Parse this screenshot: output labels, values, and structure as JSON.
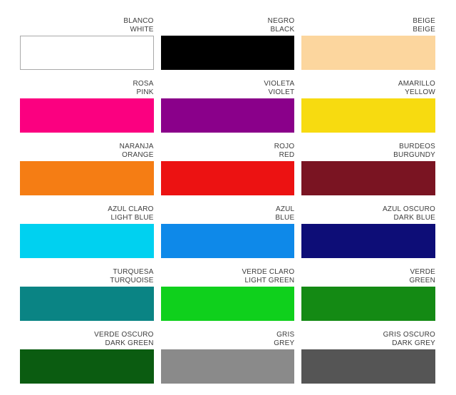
{
  "title": "spanish-english-color-chart",
  "label_text_color": "#3c3c3c",
  "background_color": "#ffffff",
  "swatches": [
    {
      "name_es": "BLANCO",
      "name_en": "WHITE",
      "color": "#ffffff",
      "border": "#a9a9a9"
    },
    {
      "name_es": "NEGRO",
      "name_en": "BLACK",
      "color": "#000000",
      "border": ""
    },
    {
      "name_es": "BEIGE",
      "name_en": "BEIGE",
      "color": "#fcd69e",
      "border": ""
    },
    {
      "name_es": "ROSA",
      "name_en": "PINK",
      "color": "#fb0080",
      "border": ""
    },
    {
      "name_es": "VIOLETA",
      "name_en": "VIOLET",
      "color": "#8a008a",
      "border": ""
    },
    {
      "name_es": "AMARILLO",
      "name_en": "YELLOW",
      "color": "#f7db10",
      "border": ""
    },
    {
      "name_es": "NARANJA",
      "name_en": "ORANGE",
      "color": "#f57d14",
      "border": ""
    },
    {
      "name_es": "ROJO",
      "name_en": "RED",
      "color": "#ec1212",
      "border": ""
    },
    {
      "name_es": "BURDEOS",
      "name_en": "BURGUNDY",
      "color": "#7a1422",
      "border": ""
    },
    {
      "name_es": "AZUL CLARO",
      "name_en": "LIGHT BLUE",
      "color": "#00d1f0",
      "border": ""
    },
    {
      "name_es": "AZUL",
      "name_en": "BLUE",
      "color": "#0e89e9",
      "border": ""
    },
    {
      "name_es": "AZUL OSCURO",
      "name_en": "DARK BLUE",
      "color": "#0d0d77",
      "border": ""
    },
    {
      "name_es": "TURQUESA",
      "name_en": "TURQUOISE",
      "color": "#0a8484",
      "border": ""
    },
    {
      "name_es": "VERDE CLARO",
      "name_en": "LIGHT GREEN",
      "color": "#0fd01c",
      "border": ""
    },
    {
      "name_es": "VERDE",
      "name_en": "GREEN",
      "color": "#148a14",
      "border": ""
    },
    {
      "name_es": "VERDE OSCURO",
      "name_en": "DARK GREEN",
      "color": "#0b5c11",
      "border": ""
    },
    {
      "name_es": "GRIS",
      "name_en": "GREY",
      "color": "#8a8a8a",
      "border": ""
    },
    {
      "name_es": "GRIS OSCURO",
      "name_en": "DARK GREY",
      "color": "#555555",
      "border": ""
    }
  ]
}
